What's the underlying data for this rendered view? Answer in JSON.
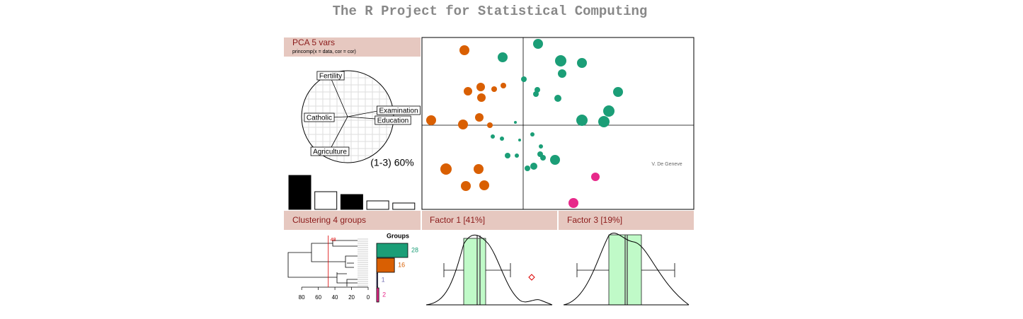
{
  "title": "The R Project for Statistical Computing",
  "pca_panel": {
    "title": "PCA  5 vars",
    "subtitle": "princomp(x = data, cor = cor)",
    "variables": [
      "Fertility",
      "Catholic",
      "Examination",
      "Education",
      "Agriculture"
    ],
    "caption": "(1-3) 60%"
  },
  "clustering_panel": {
    "title": "Clustering  4 groups"
  },
  "factor_panels": [
    "Factor 1 [41%]",
    "Factor 3 [19%]"
  ],
  "chart_data": [
    {
      "type": "bar",
      "values": [
        48,
        25,
        21,
        12,
        9
      ],
      "colors": [
        "#000000",
        "#ffffff",
        "#000000",
        "#ffffff",
        "#ffffff"
      ],
      "ylim": [
        0,
        50
      ]
    },
    {
      "type": "scatter",
      "annotation": "V. De Geneve",
      "xlim": [
        -14.3,
        24.1
      ],
      "ylim": [
        -11.9,
        12.4
      ],
      "series": [
        {
          "color": "#d95f02",
          "x": [
            -8.3,
            -7.8,
            -6,
            -5.9,
            -4.1,
            -2.8,
            -6.2,
            -8.5,
            -13,
            -4.7,
            -10.9,
            -6.3,
            -8.1,
            -5.5
          ],
          "values": [
            10.6,
            4.8,
            5.4,
            3.9,
            5.1,
            5.6,
            1.1,
            0.1,
            0.7,
            0,
            -6.2,
            -6.2,
            -8.6,
            -8.5
          ],
          "sizes": [
            7,
            6,
            6,
            6,
            4,
            4,
            6,
            7,
            7,
            4,
            8,
            7,
            7,
            7
          ]
        },
        {
          "color": "#1b9e77",
          "x": [
            2.1,
            -2.9,
            5.3,
            8.3,
            5.5,
            0.1,
            2,
            1.8,
            4.9,
            13.4,
            12.1,
            8.3,
            11.4,
            -1.1,
            -4.3,
            -3,
            -0.5,
            1.3,
            2.5,
            2.4,
            2.8,
            4.5,
            -2.2,
            -0.9,
            1.5,
            0.6
          ],
          "values": [
            11.5,
            9.6,
            9.1,
            8.8,
            7.3,
            6.5,
            5,
            4.4,
            3.8,
            4.7,
            2,
            0.7,
            0.5,
            0.4,
            -1.6,
            -1.9,
            -2.1,
            -1.3,
            -3,
            -4.1,
            -4.6,
            -4.9,
            -4.3,
            -4.3,
            -5.8,
            -6.1
          ],
          "sizes": [
            7,
            7,
            8,
            7,
            6,
            4,
            4,
            4,
            5,
            7,
            8,
            8,
            8,
            2,
            3,
            3,
            2,
            3,
            3,
            4,
            4,
            7,
            4,
            3,
            5,
            4
          ]
        },
        {
          "color": "#e7298a",
          "x": [
            10.2,
            7.1
          ],
          "values": [
            -7.3,
            -11
          ],
          "sizes": [
            6,
            7
          ]
        }
      ]
    },
    {
      "type": "dendrogram",
      "xlim": [
        98,
        0
      ],
      "xticks": [
        80,
        60,
        40,
        20,
        0
      ],
      "cut_height": 48,
      "cut_color": "#dd0000"
    },
    {
      "type": "hbar",
      "title": "Groups",
      "values": [
        28,
        16,
        1,
        2
      ],
      "colors": [
        "#1b9e77",
        "#d95f02",
        "#7570b3",
        "#e7298a"
      ],
      "xlim": [
        0,
        28
      ]
    }
  ]
}
